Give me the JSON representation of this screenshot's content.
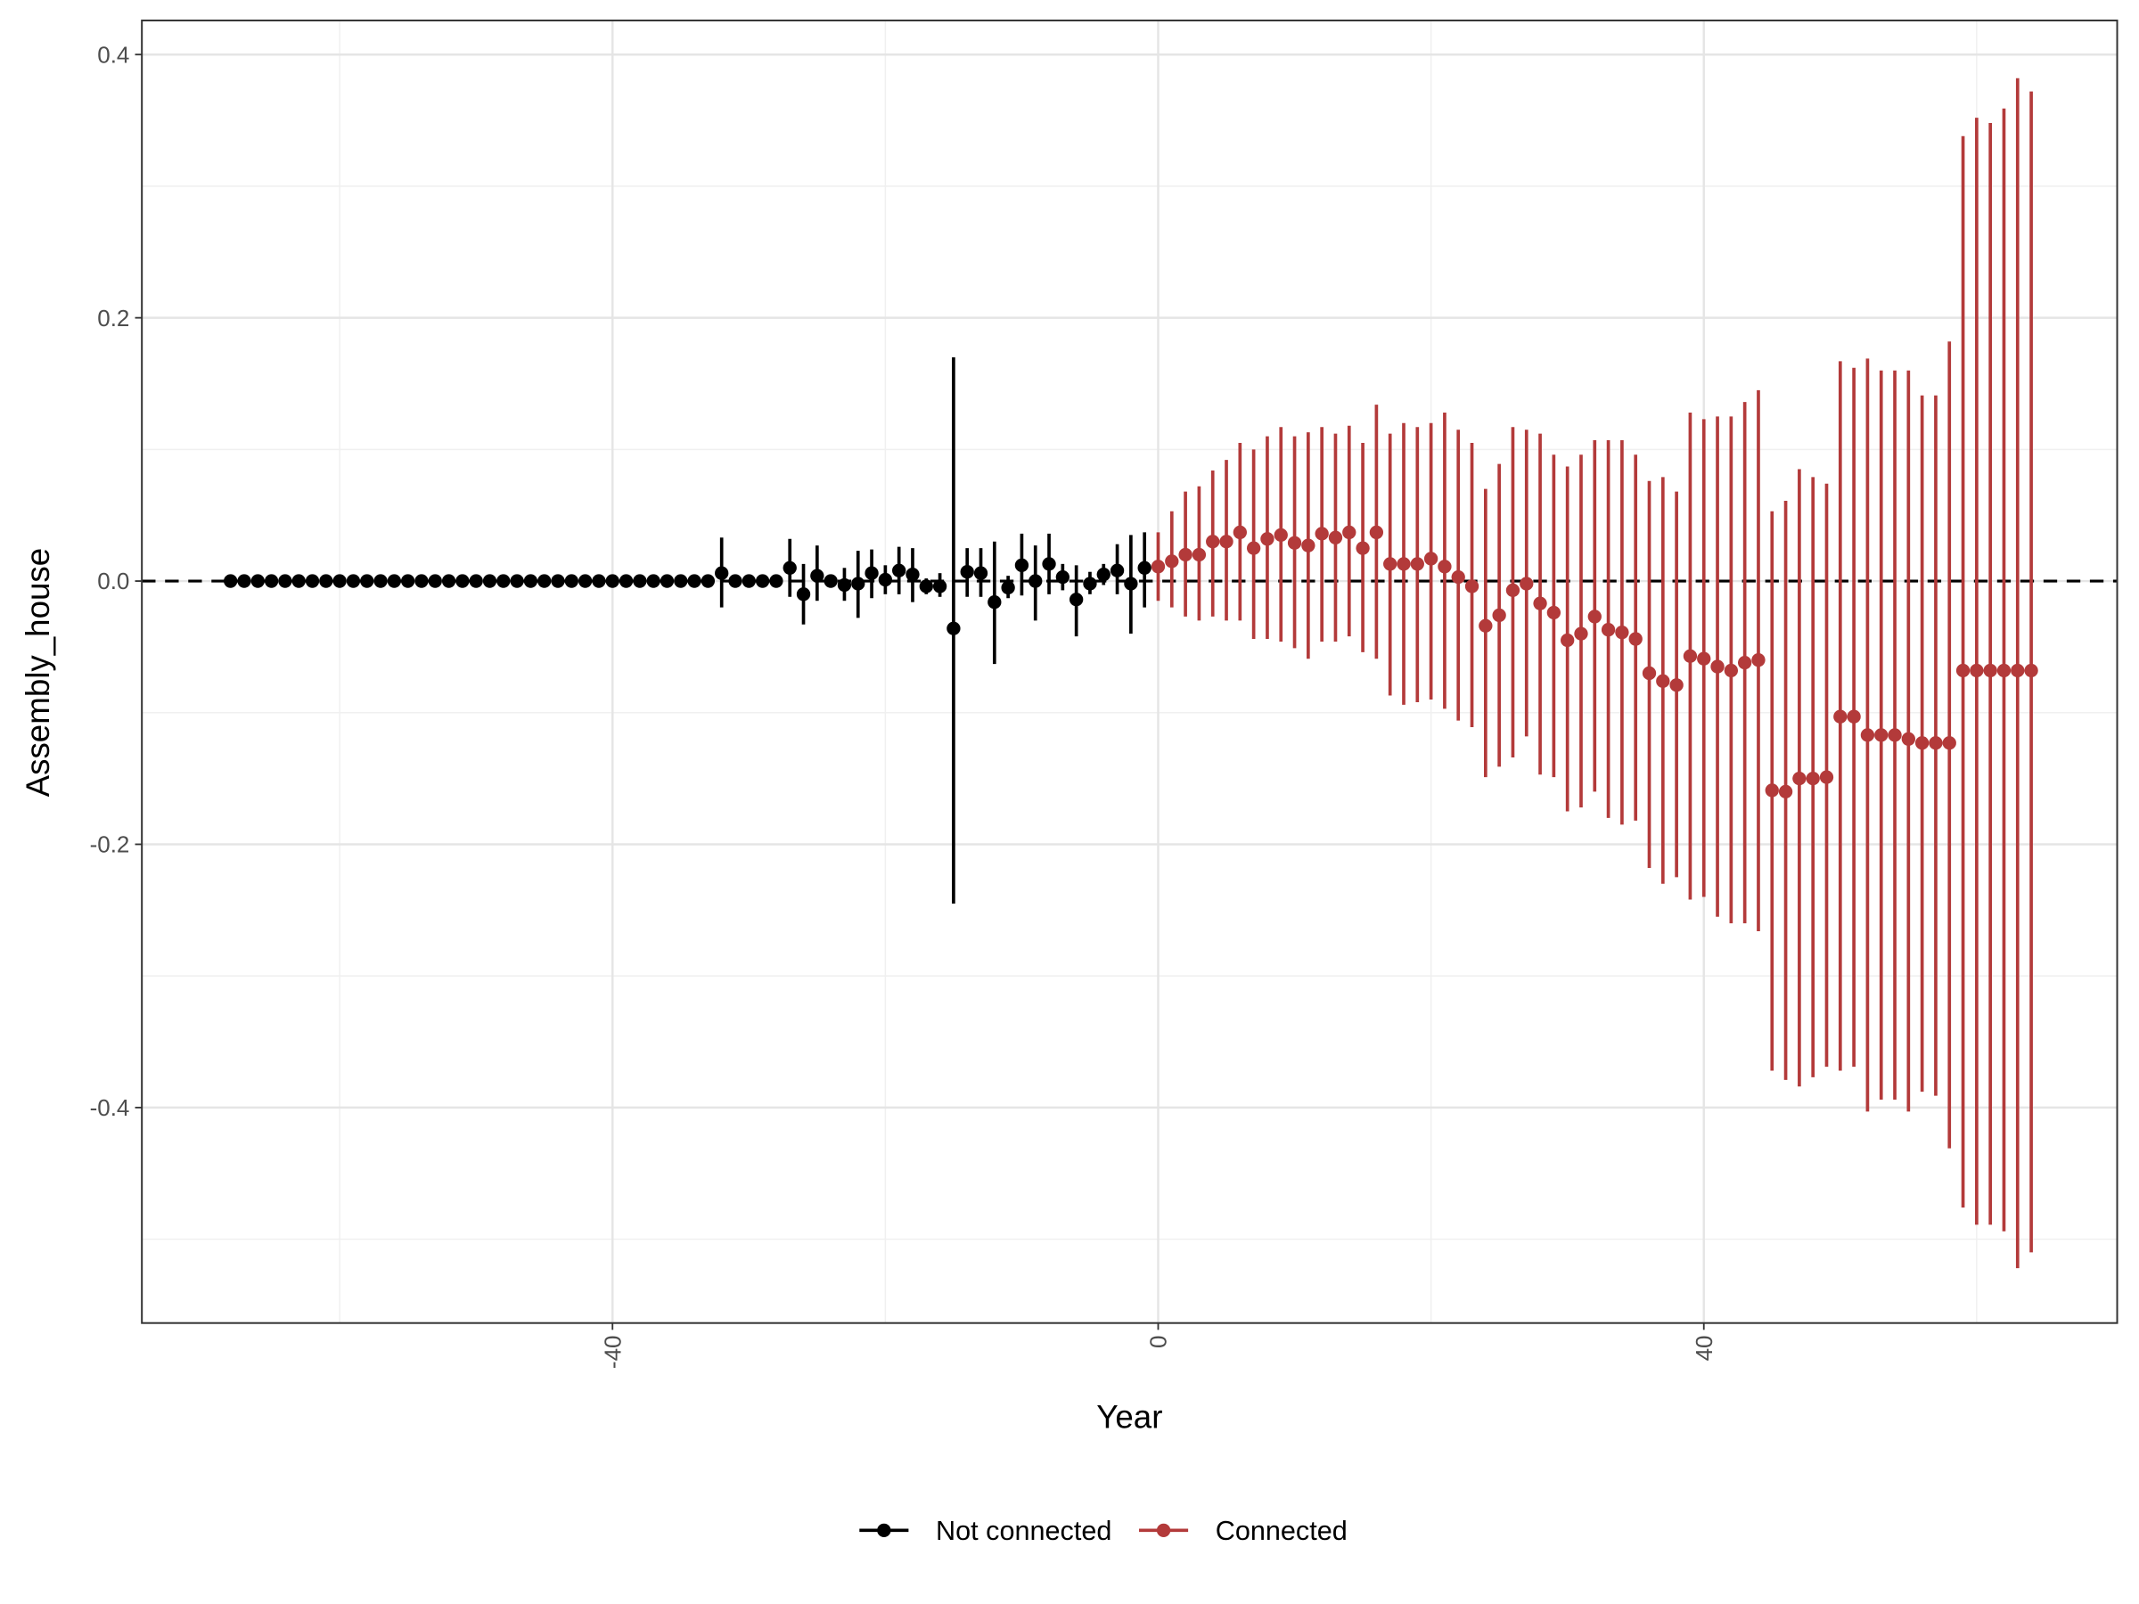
{
  "chart_data": {
    "type": "errorbar",
    "x_label": "Year",
    "y_label": "Assembly_house",
    "xlim": [
      -74.5,
      70.3
    ],
    "ylim": [
      -0.5637,
      0.4259
    ],
    "xticks": [
      -40,
      0,
      40
    ],
    "yticks": [
      -0.4,
      -0.2,
      {
        "value": 0,
        "label": "0.0"
      },
      0.2,
      0.4
    ],
    "hline": 0,
    "grid": true,
    "legend": "bottom",
    "series": [
      {
        "name": "Not connected",
        "color": "#000000",
        "x": [
          -68,
          -67,
          -66,
          -65,
          -64,
          -63,
          -62,
          -61,
          -60,
          -59,
          -58,
          -57,
          -56,
          -55,
          -54,
          -53,
          -52,
          -51,
          -50,
          -49,
          -48,
          -47,
          -46,
          -45,
          -44,
          -43,
          -42,
          -41,
          -40,
          -39,
          -38,
          -37,
          -36,
          -35,
          -34,
          -33,
          -32,
          -31,
          -30,
          -29,
          -28,
          -27,
          -26,
          -25,
          -24,
          -23,
          -22,
          -21,
          -20,
          -19,
          -18,
          -17,
          -16,
          -15,
          -14,
          -13,
          -12,
          -11,
          -10,
          -9,
          -8,
          -7,
          -6,
          -5,
          -4,
          -3,
          -2,
          -1
        ],
        "values": [
          0,
          0,
          0,
          0,
          0,
          0,
          0,
          0,
          0,
          0,
          0,
          0,
          0,
          0,
          0,
          0,
          0,
          0,
          0,
          0,
          0,
          0,
          0,
          0,
          0,
          0,
          0,
          0,
          0,
          0,
          0,
          0,
          0,
          0,
          0,
          0,
          0.006,
          0,
          0,
          0,
          0,
          0.01,
          -0.01,
          0.004,
          0,
          -0.003,
          -0.002,
          0.006,
          0.001,
          0.008,
          0.005,
          -0.004,
          -0.004,
          -0.036,
          0.007,
          0.006,
          -0.016,
          -0.005,
          0.012,
          0,
          0.013,
          0.003,
          -0.014,
          -0.002,
          0.005,
          0.008,
          -0.002,
          0.01
        ],
        "lower": [
          0,
          0,
          0,
          0,
          0,
          0,
          0,
          0,
          0,
          0,
          0,
          0,
          0,
          0,
          0,
          0,
          0,
          0,
          0,
          0,
          0,
          0,
          0,
          0,
          0,
          0,
          0,
          0,
          0,
          0,
          0,
          0,
          0,
          0,
          0,
          0,
          -0.02,
          0,
          0,
          0,
          0,
          -0.012,
          -0.033,
          -0.015,
          -0.005,
          -0.015,
          -0.028,
          -0.013,
          -0.01,
          -0.01,
          -0.016,
          -0.01,
          -0.012,
          -0.245,
          -0.012,
          -0.012,
          -0.063,
          -0.013,
          -0.011,
          -0.03,
          -0.01,
          -0.007,
          -0.042,
          -0.01,
          -0.003,
          -0.01,
          -0.04,
          -0.02
        ],
        "upper": [
          0,
          0,
          0,
          0,
          0,
          0,
          0,
          0,
          0,
          0,
          0,
          0,
          0,
          0,
          0,
          0,
          0,
          0,
          0,
          0,
          0,
          0,
          0,
          0,
          0,
          0,
          0,
          0,
          0,
          0,
          0,
          0,
          0,
          0,
          0,
          0,
          0.033,
          0,
          0,
          0,
          0,
          0.032,
          0.013,
          0.027,
          0.005,
          0.01,
          0.023,
          0.024,
          0.012,
          0.026,
          0.025,
          0.002,
          0.006,
          0.17,
          0.025,
          0.025,
          0.03,
          0.004,
          0.036,
          0.027,
          0.036,
          0.013,
          0.012,
          0.007,
          0.013,
          0.028,
          0.035,
          0.037
        ]
      },
      {
        "name": "Connected",
        "color": "#b33a3a",
        "x": [
          0,
          1,
          2,
          3,
          4,
          5,
          6,
          7,
          8,
          9,
          10,
          11,
          12,
          13,
          14,
          15,
          16,
          17,
          18,
          19,
          20,
          21,
          22,
          23,
          24,
          25,
          26,
          27,
          28,
          29,
          30,
          31,
          32,
          33,
          34,
          35,
          36,
          37,
          38,
          39,
          40,
          41,
          42,
          43,
          44,
          45,
          46,
          47,
          48,
          49,
          50,
          51,
          52,
          53,
          54,
          55,
          56,
          57,
          58,
          59,
          60,
          61,
          62,
          63,
          64
        ],
        "values": [
          0.011,
          0.015,
          0.02,
          0.02,
          0.03,
          0.03,
          0.037,
          0.025,
          0.032,
          0.035,
          0.029,
          0.027,
          0.036,
          0.033,
          0.037,
          0.025,
          0.037,
          0.013,
          0.013,
          0.013,
          0.017,
          0.011,
          0.003,
          -0.004,
          -0.034,
          -0.026,
          -0.007,
          -0.002,
          -0.017,
          -0.024,
          -0.045,
          -0.04,
          -0.027,
          -0.037,
          -0.039,
          -0.044,
          -0.07,
          -0.076,
          -0.079,
          -0.057,
          -0.059,
          -0.065,
          -0.068,
          -0.062,
          -0.06,
          -0.159,
          -0.16,
          -0.15,
          -0.15,
          -0.149,
          -0.103,
          -0.103,
          -0.117,
          -0.117,
          -0.117,
          -0.12,
          -0.123,
          -0.123,
          -0.123,
          -0.068,
          -0.068,
          -0.068,
          -0.068,
          -0.068,
          -0.068
        ],
        "lower": [
          -0.015,
          -0.02,
          -0.027,
          -0.03,
          -0.027,
          -0.03,
          -0.03,
          -0.044,
          -0.044,
          -0.046,
          -0.051,
          -0.059,
          -0.046,
          -0.046,
          -0.042,
          -0.054,
          -0.059,
          -0.087,
          -0.094,
          -0.092,
          -0.09,
          -0.097,
          -0.106,
          -0.111,
          -0.149,
          -0.141,
          -0.134,
          -0.118,
          -0.147,
          -0.149,
          -0.175,
          -0.172,
          -0.16,
          -0.18,
          -0.185,
          -0.182,
          -0.218,
          -0.23,
          -0.225,
          -0.242,
          -0.24,
          -0.255,
          -0.26,
          -0.26,
          -0.266,
          -0.372,
          -0.379,
          -0.384,
          -0.377,
          -0.369,
          -0.372,
          -0.369,
          -0.403,
          -0.394,
          -0.394,
          -0.403,
          -0.388,
          -0.391,
          -0.431,
          -0.476,
          -0.489,
          -0.489,
          -0.494,
          -0.522,
          -0.51
        ],
        "upper": [
          0.037,
          0.053,
          0.068,
          0.072,
          0.084,
          0.092,
          0.105,
          0.1,
          0.11,
          0.117,
          0.11,
          0.113,
          0.117,
          0.112,
          0.118,
          0.105,
          0.134,
          0.112,
          0.12,
          0.117,
          0.12,
          0.128,
          0.115,
          0.105,
          0.07,
          0.089,
          0.117,
          0.115,
          0.112,
          0.096,
          0.087,
          0.096,
          0.107,
          0.107,
          0.107,
          0.096,
          0.076,
          0.079,
          0.068,
          0.128,
          0.123,
          0.125,
          0.125,
          0.136,
          0.145,
          0.053,
          0.061,
          0.085,
          0.079,
          0.074,
          0.167,
          0.162,
          0.169,
          0.16,
          0.16,
          0.16,
          0.141,
          0.141,
          0.182,
          0.338,
          0.352,
          0.348,
          0.359,
          0.382,
          0.372
        ]
      }
    ]
  }
}
